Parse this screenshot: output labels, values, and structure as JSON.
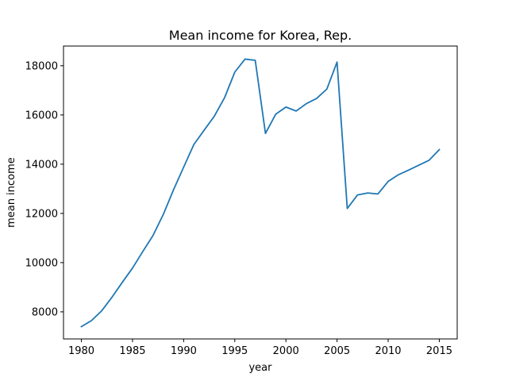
{
  "chart_data": {
    "type": "line",
    "title": "Mean income for Korea, Rep.",
    "xlabel": "year",
    "ylabel": "mean income",
    "xlim": [
      1978.25,
      2016.75
    ],
    "ylim": [
      6900,
      18800
    ],
    "xticks": [
      1980,
      1985,
      1990,
      1995,
      2000,
      2005,
      2010,
      2015
    ],
    "yticks": [
      8000,
      10000,
      12000,
      14000,
      16000,
      18000
    ],
    "grid": false,
    "series": [
      {
        "color": "#1f77b4",
        "x": [
          1980,
          1981,
          1982,
          1983,
          1984,
          1985,
          1986,
          1987,
          1988,
          1989,
          1990,
          1991,
          1992,
          1993,
          1994,
          1995,
          1996,
          1997,
          1998,
          1999,
          2000,
          2001,
          2002,
          2003,
          2004,
          2005,
          2006,
          2007,
          2008,
          2009,
          2010,
          2011,
          2012,
          2013,
          2014,
          2015
        ],
        "y": [
          7400,
          7650,
          8050,
          8600,
          9200,
          9780,
          10450,
          11100,
          11950,
          12950,
          13880,
          14800,
          15380,
          15950,
          16700,
          17740,
          18270,
          18220,
          15250,
          16030,
          16320,
          16160,
          16460,
          16670,
          17050,
          18150,
          12200,
          12750,
          12830,
          12790,
          13300,
          13570,
          13760,
          13960,
          14160,
          14590
        ]
      }
    ]
  }
}
